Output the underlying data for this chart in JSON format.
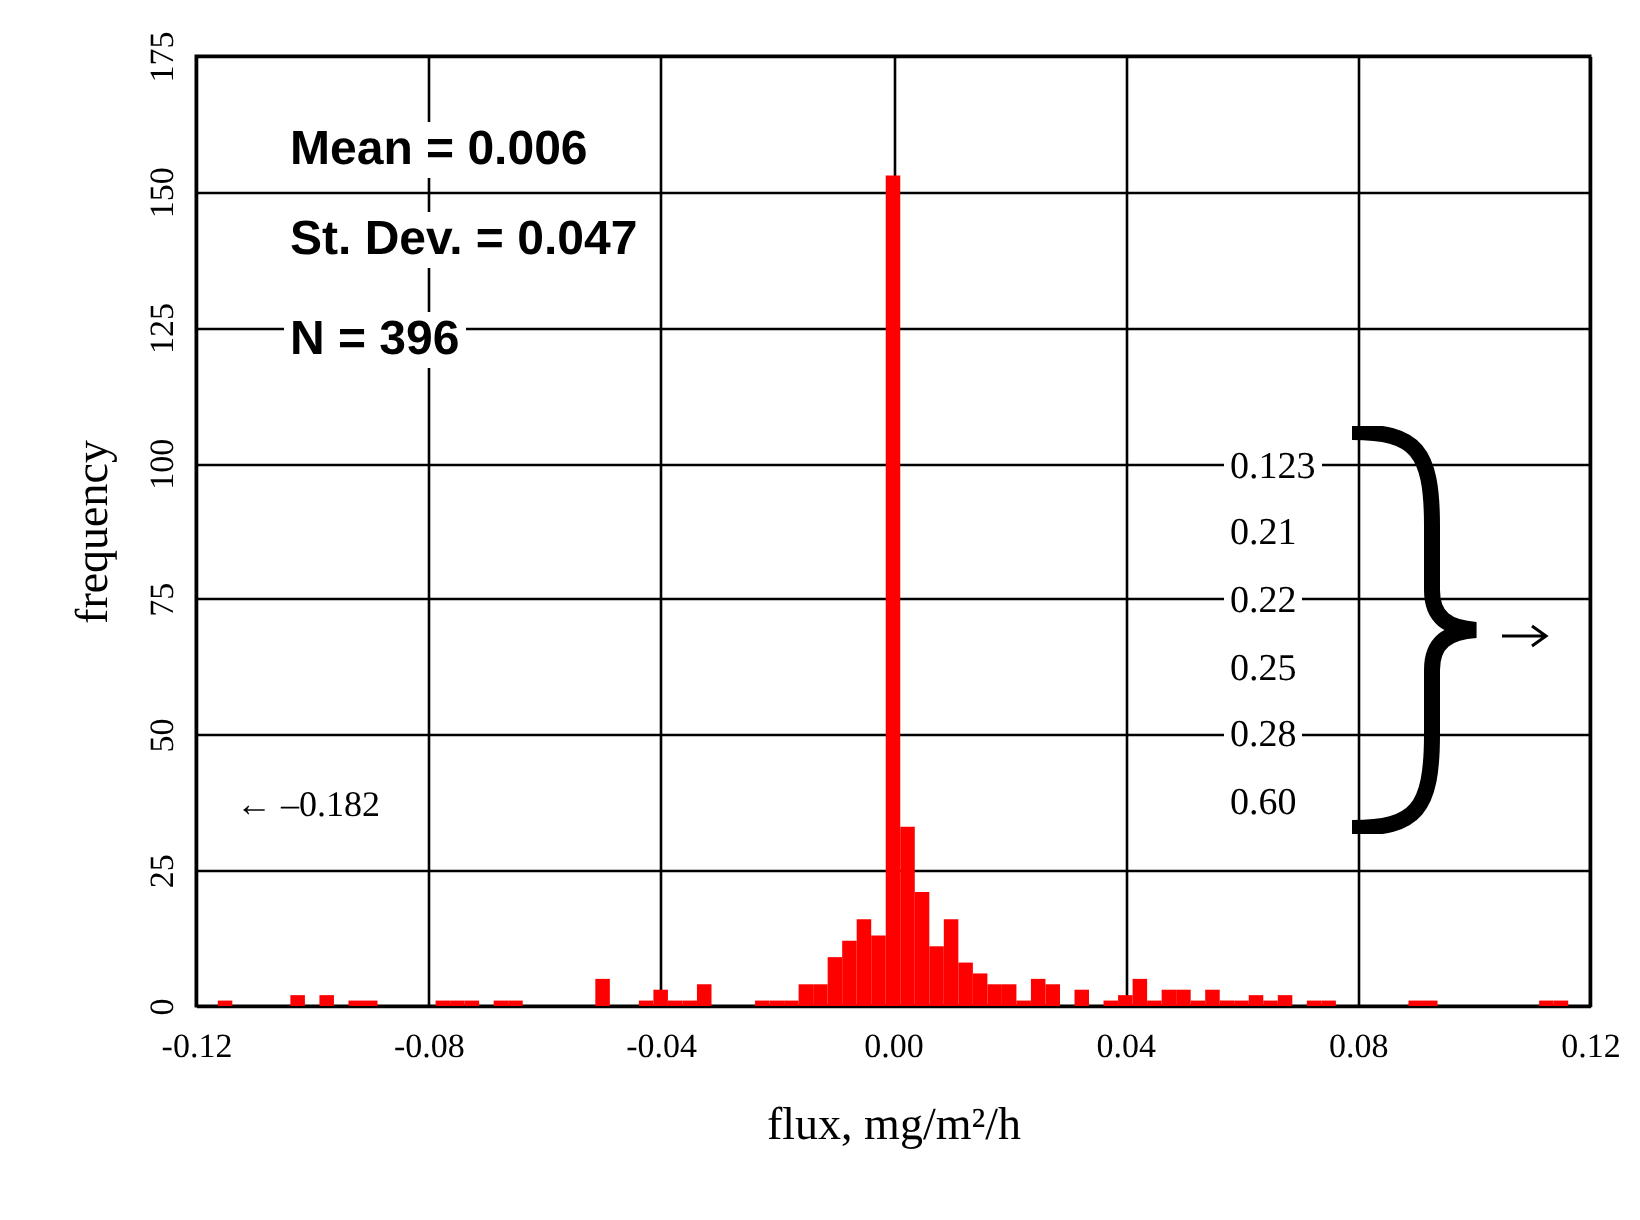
{
  "chart_data": {
    "type": "histogram",
    "xlabel": "flux, mg/m²/h",
    "ylabel": "frequency",
    "bins": [
      -0.11875,
      -0.11625,
      -0.11375,
      -0.11125,
      -0.10875,
      -0.10625,
      -0.10375,
      -0.10125,
      -0.09875,
      -0.09625,
      -0.09375,
      -0.09125,
      -0.08875,
      -0.08625,
      -0.08375,
      -0.08125,
      -0.07875,
      -0.07625,
      -0.07375,
      -0.07125,
      -0.06875,
      -0.06625,
      -0.06375,
      -0.06125,
      -0.05875,
      -0.05625,
      -0.05375,
      -0.05125,
      -0.04875,
      -0.04625,
      -0.04375,
      -0.04125,
      -0.03875,
      -0.03625,
      -0.03375,
      -0.03125,
      -0.02875,
      -0.02625,
      -0.02375,
      -0.02125,
      -0.01875,
      -0.01625,
      -0.01375,
      -0.01125,
      -0.00875,
      -0.00625,
      -0.00375,
      -0.00125,
      0.00125,
      0.00375,
      0.00625,
      0.00875,
      0.01125,
      0.01375,
      0.01625,
      0.01875,
      0.02125,
      0.02375,
      0.02625,
      0.02875,
      0.03125,
      0.03375,
      0.03625,
      0.03875,
      0.04125,
      0.04375,
      0.04625,
      0.04875,
      0.05125,
      0.05375,
      0.05625,
      0.05875,
      0.06125,
      0.06375,
      0.06625,
      0.06875,
      0.07125,
      0.07375,
      0.07625,
      0.07875,
      0.08125,
      0.08375,
      0.08625,
      0.08875,
      0.09125,
      0.09375,
      0.09625,
      0.09875,
      0.10125,
      0.10375,
      0.10625,
      0.10875,
      0.11125,
      0.11375,
      0.11625,
      0.11875
    ],
    "values": [
      0,
      1,
      0,
      0,
      0,
      0,
      2,
      0,
      2,
      0,
      1,
      1,
      0,
      0,
      0,
      0,
      1,
      1,
      1,
      0,
      1,
      1,
      0,
      0,
      0,
      0,
      0,
      5,
      0,
      0,
      1,
      3,
      1,
      1,
      4,
      0,
      0,
      0,
      1,
      1,
      1,
      4,
      4,
      9,
      12,
      16,
      13,
      153,
      33,
      21,
      11,
      16,
      8,
      6,
      4,
      4,
      1,
      5,
      4,
      0,
      3,
      0,
      1,
      2,
      5,
      1,
      3,
      3,
      1,
      3,
      1,
      1,
      2,
      1,
      2,
      0,
      1,
      1,
      0,
      0,
      0,
      0,
      0,
      1,
      1,
      0,
      0,
      0,
      0,
      0,
      0,
      0,
      1,
      1,
      0
    ],
    "color": "#ff0000",
    "xlim": [
      -0.12,
      0.12
    ],
    "xticks": [
      {
        "value": -0.12,
        "label": "-0.12"
      },
      {
        "value": -0.08,
        "label": "-0.08"
      },
      {
        "value": -0.04,
        "label": "-0.04"
      },
      {
        "value": 0,
        "label": "0.00"
      },
      {
        "value": 0.04,
        "label": "0.04"
      },
      {
        "value": 0.08,
        "label": "0.08"
      },
      {
        "value": 0.12,
        "label": "0.12"
      }
    ],
    "ylim": [
      0,
      175
    ],
    "yticks": [
      0,
      25,
      50,
      75,
      100,
      125,
      150,
      175
    ],
    "grid": true,
    "annotations": [
      "Mean = 0.006",
      "St. Dev. = 0.047",
      "N = 396",
      "← –0.182",
      "0.123",
      "0.21",
      "0.22",
      "0.25",
      "0.28",
      "0.60"
    ]
  }
}
